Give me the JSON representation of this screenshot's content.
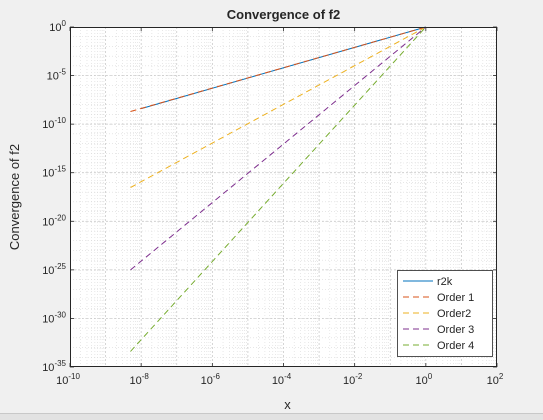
{
  "chart_data": {
    "type": "line",
    "title": "Convergence of f2",
    "xlabel": "x",
    "ylabel": "Convergence of f2",
    "xscale": "log",
    "yscale": "log",
    "xlim": [
      1e-10,
      100
    ],
    "ylim": [
      1e-35,
      1
    ],
    "xticks": [
      {
        "base": "10",
        "exp": "-10"
      },
      {
        "base": "10",
        "exp": "-8"
      },
      {
        "base": "10",
        "exp": "-6"
      },
      {
        "base": "10",
        "exp": "-4"
      },
      {
        "base": "10",
        "exp": "-2"
      },
      {
        "base": "10",
        "exp": "0"
      },
      {
        "base": "10",
        "exp": "2"
      }
    ],
    "yticks": [
      {
        "base": "10",
        "exp": "0"
      },
      {
        "base": "10",
        "exp": "-5"
      },
      {
        "base": "10",
        "exp": "-10"
      },
      {
        "base": "10",
        "exp": "-15"
      },
      {
        "base": "10",
        "exp": "-20"
      },
      {
        "base": "10",
        "exp": "-25"
      },
      {
        "base": "10",
        "exp": "-30"
      },
      {
        "base": "10",
        "exp": "-35"
      }
    ],
    "grid": true,
    "minor_grid": true,
    "legend_position": "bottom-right",
    "series": [
      {
        "name": "r2k",
        "color": "#0072bd",
        "dash": "solid",
        "x": [
          1e-08,
          1
        ],
        "y": [
          4e-09,
          1
        ]
      },
      {
        "name": "Order 1",
        "color": "#d95319",
        "dash": "dashed",
        "x": [
          5e-09,
          1
        ],
        "y": [
          2e-09,
          1
        ]
      },
      {
        "name": "Order2",
        "color": "#edb120",
        "dash": "dashed",
        "x": [
          5e-09,
          1
        ],
        "y": [
          3e-17,
          1
        ]
      },
      {
        "name": "Order 3",
        "color": "#7e2f8e",
        "dash": "dashed",
        "x": [
          5e-09,
          1
        ],
        "y": [
          1e-25,
          1
        ]
      },
      {
        "name": "Order 4",
        "color": "#77ac30",
        "dash": "dashed",
        "x": [
          5e-09,
          1
        ],
        "y": [
          4e-34,
          1
        ]
      }
    ]
  }
}
